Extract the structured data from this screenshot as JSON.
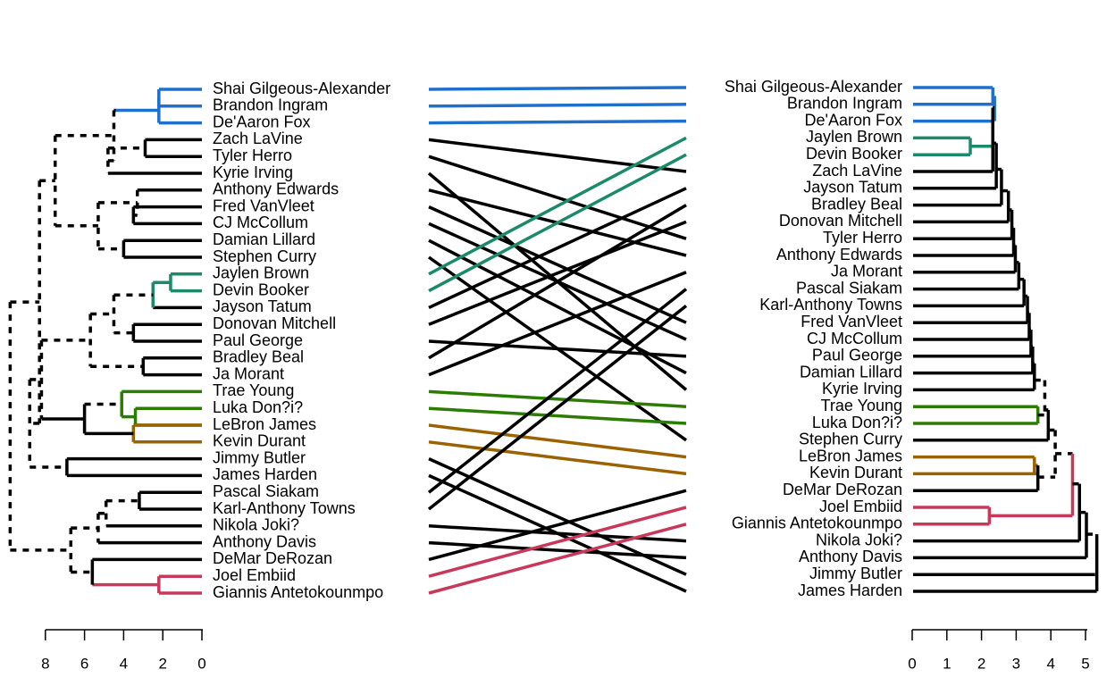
{
  "left_tree": {
    "labels": [
      "Shai Gilgeous-Alexander",
      "Brandon Ingram",
      "De'Aaron Fox",
      "Zach LaVine",
      "Tyler Herro",
      "Kyrie Irving",
      "Anthony Edwards",
      "Fred VanVleet",
      "CJ McCollum",
      "Damian Lillard",
      "Stephen Curry",
      "Jaylen Brown",
      "Devin Booker",
      "Jayson Tatum",
      "Donovan Mitchell",
      "Paul George",
      "Bradley Beal",
      "Ja Morant",
      "Trae Young",
      "Luka Don?i?",
      "LeBron James",
      "Kevin Durant",
      "Jimmy Butler",
      "James Harden",
      "Pascal Siakam",
      "Karl-Anthony Towns",
      "Nikola Joki?",
      "Anthony Davis",
      "DeMar DeRozan",
      "Joel Embiid",
      "Giannis Antetokounmpo"
    ],
    "axis_ticks": [
      "8",
      "6",
      "4",
      "2",
      "0"
    ]
  },
  "right_tree": {
    "labels": [
      "Shai Gilgeous-Alexander",
      "Brandon Ingram",
      "De'Aaron Fox",
      "Jaylen Brown",
      "Devin Booker",
      "Zach LaVine",
      "Jayson Tatum",
      "Bradley Beal",
      "Donovan Mitchell",
      "Tyler Herro",
      "Anthony Edwards",
      "Ja Morant",
      "Pascal Siakam",
      "Karl-Anthony Towns",
      "Fred VanVleet",
      "CJ McCollum",
      "Paul George",
      "Damian Lillard",
      "Kyrie Irving",
      "Trae Young",
      "Luka Don?i?",
      "Stephen Curry",
      "LeBron James",
      "Kevin Durant",
      "DeMar DeRozan",
      "Joel Embiid",
      "Giannis Antetokounmpo",
      "Nikola Joki?",
      "Anthony Davis",
      "Jimmy Butler",
      "James Harden"
    ],
    "axis_ticks": [
      "0",
      "1",
      "2",
      "3",
      "4",
      "5"
    ]
  },
  "colors": {
    "blue": "#1f6fcc",
    "teal": "#1b8a6b",
    "green": "#2a7d00",
    "brown": "#9a6200",
    "crimson": "#c8385a",
    "black": "#000000"
  },
  "connector_colors": [
    "blue",
    "blue",
    "blue",
    "black",
    "black",
    "black",
    "black",
    "black",
    "black",
    "black",
    "black",
    "teal",
    "teal",
    "black",
    "black",
    "black",
    "black",
    "black",
    "green",
    "green",
    "brown",
    "brown",
    "black",
    "black",
    "black",
    "black",
    "black",
    "black",
    "black",
    "crimson",
    "crimson"
  ]
}
